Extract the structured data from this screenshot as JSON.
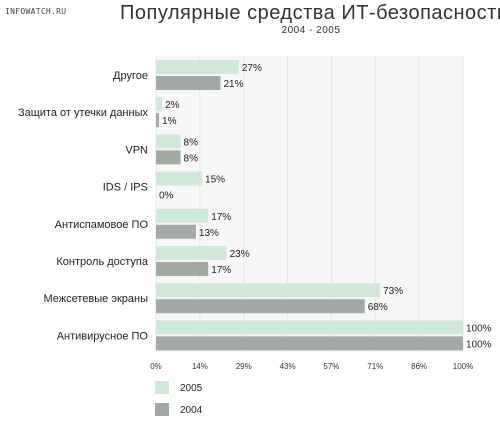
{
  "watermark": "INFOWATCH.RU",
  "chart_data": {
    "type": "bar",
    "orientation": "horizontal",
    "title": "Популярные средства ИТ-безопасности",
    "subtitle": "2004 - 2005",
    "categories": [
      "Другое",
      "Защита от утечки данных",
      "VPN",
      "IDS / IPS",
      "Антиспамовое ПО",
      "Контроль доступа",
      "Межсетевые экраны",
      "Антивирусное ПО"
    ],
    "series": [
      {
        "name": "2005",
        "color": "#cfe8d8",
        "values": [
          27,
          2,
          8,
          15,
          17,
          23,
          73,
          100
        ]
      },
      {
        "name": "2004",
        "color": "#a3aaa6",
        "values": [
          21,
          1,
          8,
          0,
          13,
          17,
          68,
          100
        ]
      }
    ],
    "value_suffix": "%",
    "xlim": [
      0,
      100
    ],
    "x_ticks": [
      "0%",
      "14%",
      "29%",
      "43%",
      "57%",
      "71%",
      "86%",
      "100%"
    ],
    "grid": true,
    "legend_position": "bottom-left"
  }
}
